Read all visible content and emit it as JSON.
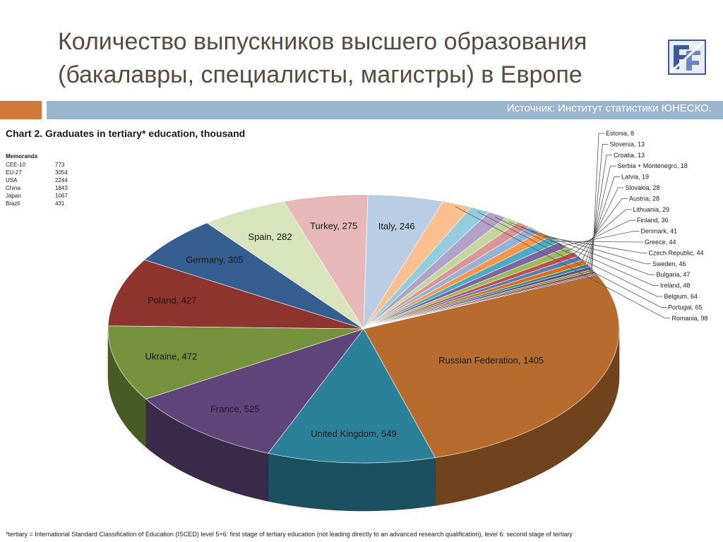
{
  "slide": {
    "title_line1": "Количество выпускников высшего образования",
    "title_line2": "(бакалавры, специалисты, магистры) в Европе",
    "source": "Источник: Институт статистики ЮНЕСКО."
  },
  "colors": {
    "accent": "#d2773a",
    "bar": "#9ab6cf",
    "title": "#5a4a3c"
  },
  "chart_data": {
    "type": "pie",
    "title": "Chart 2. Graduates in tertiary* education, thousand",
    "memoranda": {
      "heading": "Memoranda",
      "rows": [
        {
          "label": "CEE-10",
          "value": "773"
        },
        {
          "label": "EU-27",
          "value": "3054"
        },
        {
          "label": "USA",
          "value": "2244"
        },
        {
          "label": "China",
          "value": "1843"
        },
        {
          "label": "Japan",
          "value": "1067"
        },
        {
          "label": "Brazil",
          "value": "431"
        }
      ]
    },
    "slices": [
      {
        "label": "Russian Federation",
        "value": 1405,
        "color": "#b76c2e"
      },
      {
        "label": "United Kingdom",
        "value": 549,
        "color": "#2b8199"
      },
      {
        "label": "France",
        "value": 525,
        "color": "#5f4579"
      },
      {
        "label": "Ukraine",
        "value": 472,
        "color": "#76923c"
      },
      {
        "label": "Poland",
        "value": 427,
        "color": "#8f3530"
      },
      {
        "label": "Germany",
        "value": 305,
        "color": "#355f91"
      },
      {
        "label": "Spain",
        "value": 282,
        "color": "#d8e4bc"
      },
      {
        "label": "Turkey",
        "value": 275,
        "color": "#e6b9b8"
      },
      {
        "label": "Italy",
        "value": 246,
        "color": "#b9cde5"
      },
      {
        "label": "Romania",
        "value": 98,
        "color": "#fac090"
      },
      {
        "label": "Portugal",
        "value": 65,
        "color": "#93cddd"
      },
      {
        "label": "Belgium",
        "value": 64,
        "color": "#b3a2c7"
      },
      {
        "label": "Ireland",
        "value": 48,
        "color": "#c3d69b"
      },
      {
        "label": "Bulgaria",
        "value": 47,
        "color": "#d99694"
      },
      {
        "label": "Sweden",
        "value": 46,
        "color": "#95b3d7"
      },
      {
        "label": "Czech Republic",
        "value": 44,
        "color": "#f79646"
      },
      {
        "label": "Greece",
        "value": 44,
        "color": "#4bacc6"
      },
      {
        "label": "Denmark",
        "value": 41,
        "color": "#8064a2"
      },
      {
        "label": "Finland",
        "value": 36,
        "color": "#9bbb59"
      },
      {
        "label": "Lithuania",
        "value": 29,
        "color": "#c0504d"
      },
      {
        "label": "Austria",
        "value": 28,
        "color": "#4f81bd"
      },
      {
        "label": "Slovakia",
        "value": 28,
        "color": "#e46c0a"
      },
      {
        "label": "Latvia",
        "value": 19,
        "color": "#31859c"
      },
      {
        "label": "Serbia + Montenegro",
        "value": 18,
        "color": "#604a7b"
      },
      {
        "label": "Croatia",
        "value": 13,
        "color": "#77933c"
      },
      {
        "label": "Slovenia",
        "value": 13,
        "color": "#953735"
      },
      {
        "label": "Estonia",
        "value": 8,
        "color": "#376092"
      }
    ],
    "footnote": "*tertiary = International Standard Classification of Education (ISCED) level 5+6: first stage of tertiary education (not leading directly to an advanced research qualification), level 6: second stage of tertiary"
  }
}
